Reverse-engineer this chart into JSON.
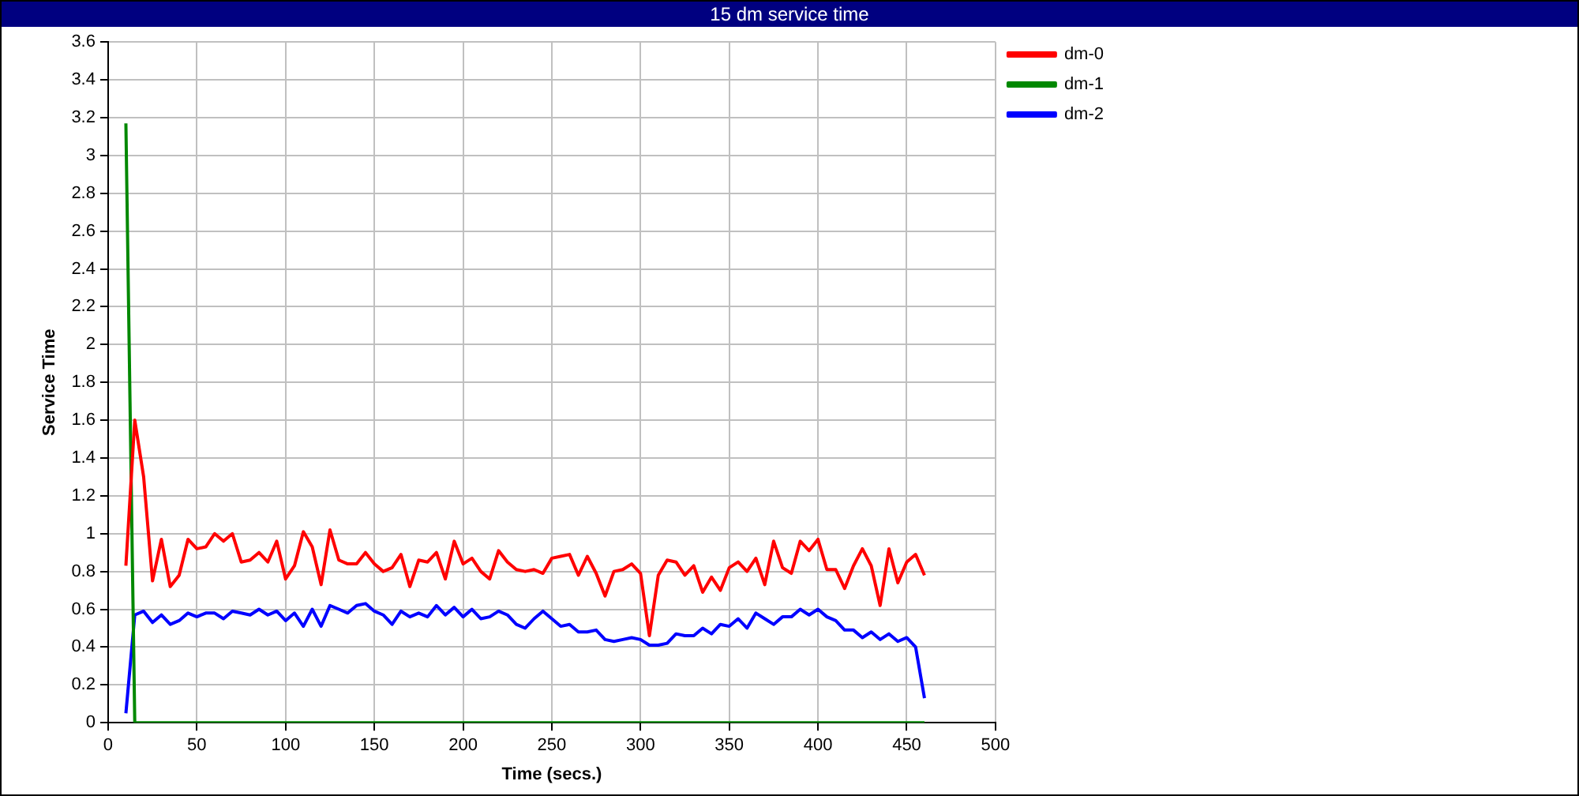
{
  "chart_data": {
    "type": "line",
    "title": "15 dm service time",
    "xlabel": "Time (secs.)",
    "ylabel": "Service Time",
    "x": [
      10,
      15,
      20,
      25,
      30,
      35,
      40,
      45,
      50,
      55,
      60,
      65,
      70,
      75,
      80,
      85,
      90,
      95,
      100,
      105,
      110,
      115,
      120,
      125,
      130,
      135,
      140,
      145,
      150,
      155,
      160,
      165,
      170,
      175,
      180,
      185,
      190,
      195,
      200,
      205,
      210,
      215,
      220,
      225,
      230,
      235,
      240,
      245,
      250,
      255,
      260,
      265,
      270,
      275,
      280,
      285,
      290,
      295,
      300,
      305,
      310,
      315,
      320,
      325,
      330,
      335,
      340,
      345,
      350,
      355,
      360,
      365,
      370,
      375,
      380,
      385,
      390,
      395,
      400,
      405,
      410,
      415,
      420,
      425,
      430,
      435,
      440,
      445,
      450,
      455,
      460
    ],
    "series": [
      {
        "name": "dm-0",
        "color": "#ff0000",
        "values": [
          0.83,
          1.6,
          1.3,
          0.75,
          0.97,
          0.72,
          0.78,
          0.97,
          0.92,
          0.93,
          1.0,
          0.96,
          1.0,
          0.85,
          0.86,
          0.9,
          0.85,
          0.96,
          0.76,
          0.83,
          1.01,
          0.93,
          0.73,
          1.02,
          0.86,
          0.84,
          0.84,
          0.9,
          0.84,
          0.8,
          0.82,
          0.89,
          0.72,
          0.86,
          0.85,
          0.9,
          0.76,
          0.96,
          0.84,
          0.87,
          0.8,
          0.76,
          0.91,
          0.85,
          0.81,
          0.8,
          0.81,
          0.79,
          0.87,
          0.88,
          0.89,
          0.78,
          0.88,
          0.79,
          0.67,
          0.8,
          0.81,
          0.84,
          0.79,
          0.46,
          0.78,
          0.86,
          0.85,
          0.78,
          0.83,
          0.69,
          0.77,
          0.7,
          0.82,
          0.85,
          0.8,
          0.87,
          0.73,
          0.96,
          0.82,
          0.79,
          0.96,
          0.91,
          0.97,
          0.81,
          0.81,
          0.71,
          0.83,
          0.92,
          0.83,
          0.62,
          0.92,
          0.74,
          0.85,
          0.89,
          0.78
        ]
      },
      {
        "name": "dm-1",
        "color": "#008800",
        "values": [
          3.17,
          0,
          0,
          0,
          0,
          0,
          0,
          0,
          0,
          0,
          0,
          0,
          0,
          0,
          0,
          0,
          0,
          0,
          0,
          0,
          0,
          0,
          0,
          0,
          0,
          0,
          0,
          0,
          0,
          0,
          0,
          0,
          0,
          0,
          0,
          0,
          0,
          0,
          0,
          0,
          0,
          0,
          0,
          0,
          0,
          0,
          0,
          0,
          0,
          0,
          0,
          0,
          0,
          0,
          0,
          0,
          0,
          0,
          0,
          0,
          0,
          0,
          0,
          0,
          0,
          0,
          0,
          0,
          0,
          0,
          0,
          0,
          0,
          0,
          0,
          0,
          0,
          0,
          0,
          0,
          0,
          0,
          0,
          0,
          0,
          0,
          0,
          0,
          0,
          0,
          0
        ]
      },
      {
        "name": "dm-2",
        "color": "#0000ff",
        "values": [
          0.05,
          0.57,
          0.59,
          0.53,
          0.57,
          0.52,
          0.54,
          0.58,
          0.56,
          0.58,
          0.58,
          0.55,
          0.59,
          0.58,
          0.57,
          0.6,
          0.57,
          0.59,
          0.54,
          0.58,
          0.51,
          0.6,
          0.51,
          0.62,
          0.6,
          0.58,
          0.62,
          0.63,
          0.59,
          0.57,
          0.52,
          0.59,
          0.56,
          0.58,
          0.56,
          0.62,
          0.57,
          0.61,
          0.56,
          0.6,
          0.55,
          0.56,
          0.59,
          0.57,
          0.52,
          0.5,
          0.55,
          0.59,
          0.55,
          0.51,
          0.52,
          0.48,
          0.48,
          0.49,
          0.44,
          0.43,
          0.44,
          0.45,
          0.44,
          0.41,
          0.41,
          0.42,
          0.47,
          0.46,
          0.46,
          0.5,
          0.47,
          0.52,
          0.51,
          0.55,
          0.5,
          0.58,
          0.55,
          0.52,
          0.56,
          0.56,
          0.6,
          0.57,
          0.6,
          0.56,
          0.54,
          0.49,
          0.49,
          0.45,
          0.48,
          0.44,
          0.47,
          0.43,
          0.45,
          0.4,
          0.13
        ]
      }
    ],
    "xlim": [
      0,
      500
    ],
    "xticks": [
      0,
      50,
      100,
      150,
      200,
      250,
      300,
      350,
      400,
      450,
      500
    ],
    "ylim": [
      0,
      3.6
    ],
    "yticks": [
      0,
      0.2,
      0.4,
      0.6,
      0.8,
      1,
      1.2,
      1.4,
      1.6,
      1.8,
      2,
      2.2,
      2.4,
      2.6,
      2.8,
      3,
      3.2,
      3.4,
      3.6
    ],
    "grid": true,
    "legend": "top right",
    "marker": "none",
    "line_style": "solid"
  }
}
